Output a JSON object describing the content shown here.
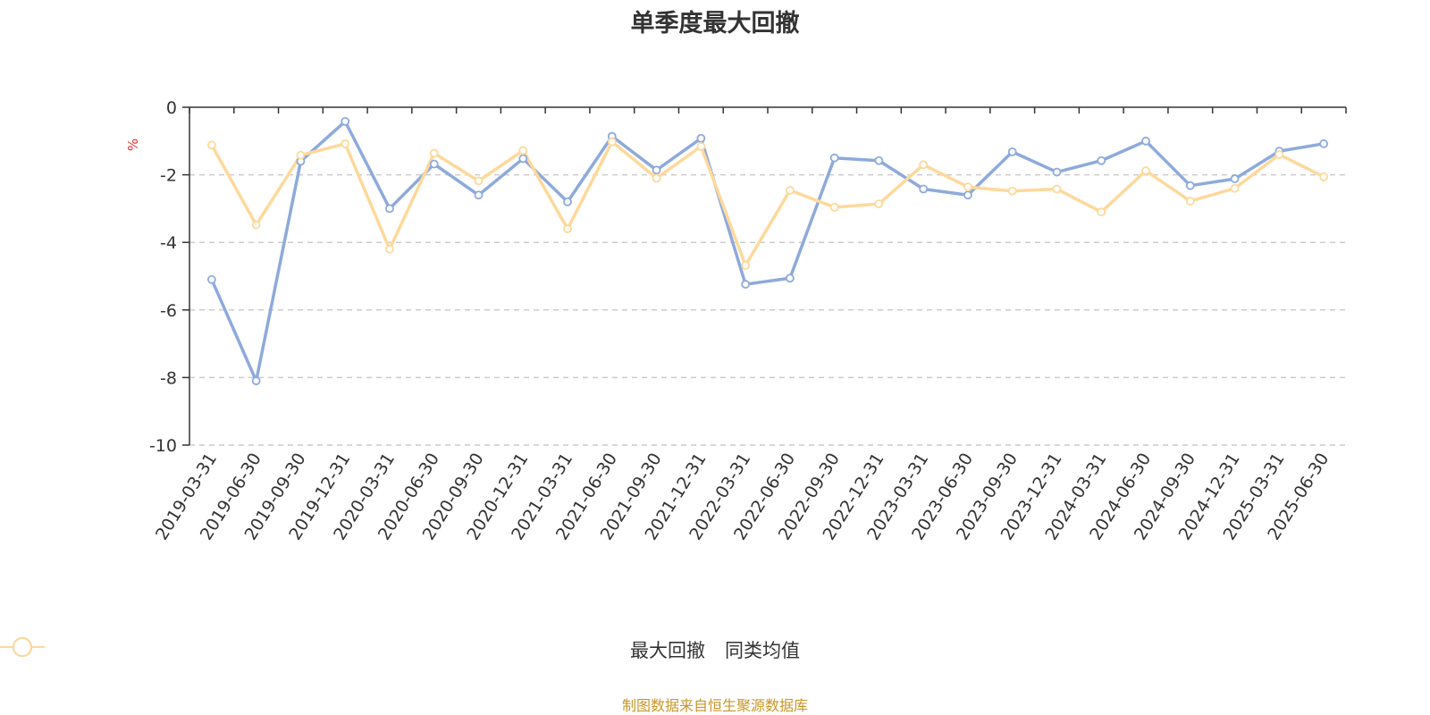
{
  "chart_data": {
    "type": "line",
    "title": "单季度最大回撤",
    "ylabel": "%",
    "ylim": [
      -10,
      0
    ],
    "yticks": [
      0,
      -2,
      -4,
      -6,
      -8,
      -10
    ],
    "grid": true,
    "legend_position": "bottom",
    "categories": [
      "2019-03-31",
      "2019-06-30",
      "2019-09-30",
      "2019-12-31",
      "2020-03-31",
      "2020-06-30",
      "2020-09-30",
      "2020-12-31",
      "2021-03-31",
      "2021-06-30",
      "2021-09-30",
      "2021-12-31",
      "2022-03-31",
      "2022-06-30",
      "2022-09-30",
      "2022-12-31",
      "2023-03-31",
      "2023-06-30",
      "2023-09-30",
      "2023-12-31",
      "2024-03-31",
      "2024-06-30",
      "2024-09-30",
      "2024-12-31",
      "2025-03-31",
      "2025-06-30"
    ],
    "series": [
      {
        "name": "最大回撤",
        "color": "#8eaadb",
        "values": [
          -5.1,
          -8.1,
          -1.6,
          -0.42,
          -3.0,
          -1.68,
          -2.6,
          -1.52,
          -2.8,
          -0.86,
          -1.86,
          -0.92,
          -5.24,
          -5.06,
          -1.5,
          -1.58,
          -2.42,
          -2.6,
          -1.32,
          -1.92,
          -1.58,
          -1.0,
          -2.32,
          -2.12,
          -1.3,
          -1.08
        ]
      },
      {
        "name": "同类均值",
        "color": "#fdd99b",
        "values": [
          -1.12,
          -3.48,
          -1.42,
          -1.08,
          -4.2,
          -1.36,
          -2.18,
          -1.28,
          -3.6,
          -1.02,
          -2.1,
          -1.16,
          -4.68,
          -2.46,
          -2.96,
          -2.86,
          -1.7,
          -2.36,
          -2.48,
          -2.42,
          -3.1,
          -1.88,
          -2.78,
          -2.4,
          -1.4,
          -2.06
        ]
      }
    ]
  },
  "legend": {
    "items": [
      "最大回撤",
      "同类均值"
    ]
  },
  "footer": {
    "source": "制图数据来自恒生聚源数据库"
  }
}
